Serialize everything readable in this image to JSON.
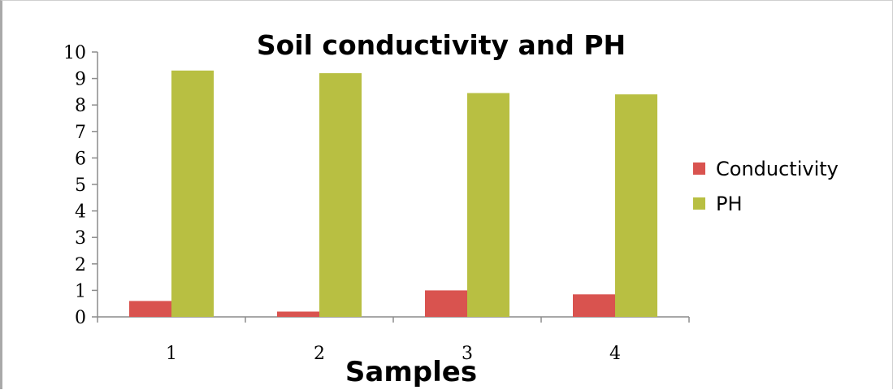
{
  "chart_data": {
    "type": "bar",
    "title": "Soil conductivity and PH",
    "xlabel": "Samples",
    "ylabel": "",
    "categories": [
      "1",
      "2",
      "3",
      "4"
    ],
    "ylim": [
      0,
      10
    ],
    "yticks": [
      "0",
      "1",
      "2",
      "3",
      "4",
      "5",
      "6",
      "7",
      "8",
      "9",
      "10"
    ],
    "grid": false,
    "legend_position": "right",
    "series": [
      {
        "name": "Conductivity",
        "values": [
          0.6,
          0.2,
          1.0,
          0.85
        ],
        "color": "#d9534f"
      },
      {
        "name": "PH",
        "values": [
          9.3,
          9.2,
          8.45,
          8.4
        ],
        "color": "#b8bf42"
      }
    ]
  }
}
